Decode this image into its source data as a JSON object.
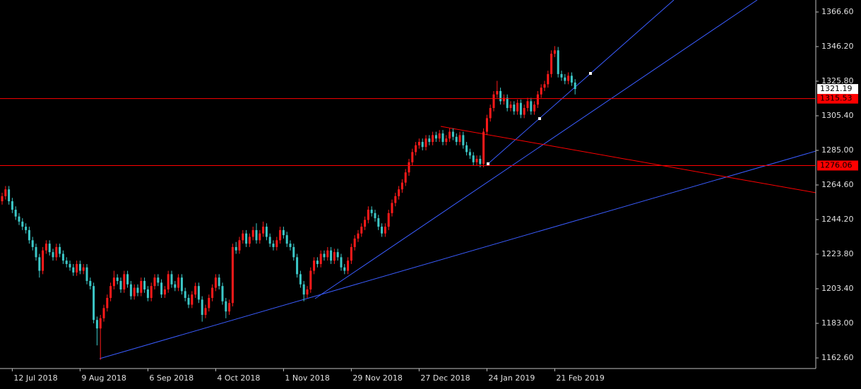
{
  "chart_data": {
    "type": "candlestick",
    "up_color": "#ff1a1a",
    "down_color": "#3cc8c8",
    "categories": [
      null,
      null,
      null,
      "12 Jul 2018",
      null,
      null,
      null,
      null,
      null,
      null,
      null,
      null,
      null,
      null,
      null,
      null,
      null,
      null,
      null,
      null,
      null,
      null,
      null,
      "9 Aug 2018",
      null,
      null,
      null,
      null,
      null,
      null,
      null,
      null,
      null,
      null,
      null,
      null,
      null,
      null,
      null,
      null,
      null,
      null,
      null,
      "6 Sep 2018",
      null,
      null,
      null,
      null,
      null,
      null,
      null,
      null,
      null,
      null,
      null,
      null,
      null,
      null,
      null,
      null,
      null,
      null,
      null,
      "4 Oct 2018",
      null,
      null,
      null,
      null,
      null,
      null,
      null,
      null,
      null,
      null,
      null,
      null,
      null,
      null,
      null,
      null,
      null,
      null,
      null,
      "1 Nov 2018",
      null,
      null,
      null,
      null,
      null,
      null,
      null,
      null,
      null,
      null,
      null,
      null,
      null,
      null,
      null,
      null,
      null,
      null,
      null,
      "29 Nov 2018",
      null,
      null,
      null,
      null,
      null,
      null,
      null,
      null,
      null,
      null,
      null,
      null,
      null,
      null,
      null,
      null,
      null,
      null,
      null,
      "27 Dec 2018",
      null,
      null,
      null,
      null,
      null,
      null,
      null,
      null,
      null,
      null,
      null,
      null,
      null,
      null,
      null,
      null,
      null,
      null,
      null,
      "24 Jan 2019",
      null,
      null,
      null,
      null,
      null,
      null,
      null,
      null,
      null,
      null,
      null,
      null,
      null,
      null,
      null,
      null,
      null,
      null,
      null,
      "21 Feb 2019",
      null,
      null,
      null,
      null,
      null,
      null
    ],
    "open": [
      1255,
      1258,
      1262,
      1255,
      1250,
      1246,
      1243,
      1240,
      1238,
      1232,
      1228,
      1222,
      1214,
      1226,
      1230,
      1225,
      1222,
      1228,
      1224,
      1220,
      1218,
      1216,
      1213,
      1218,
      1214,
      1216,
      1208,
      1205,
      1185,
      1180,
      1186,
      1192,
      1198,
      1205,
      1210,
      1208,
      1203,
      1212,
      1206,
      1199,
      1204,
      1201,
      1208,
      1203,
      1198,
      1205,
      1210,
      1207,
      1200,
      1203,
      1212,
      1206,
      1204,
      1210,
      1202,
      1198,
      1194,
      1200,
      1205,
      1197,
      1188,
      1192,
      1198,
      1204,
      1210,
      1205,
      1196,
      1190,
      1195,
      1228,
      1226,
      1232,
      1236,
      1230,
      1234,
      1238,
      1232,
      1236,
      1240,
      1234,
      1230,
      1228,
      1232,
      1238,
      1235,
      1230,
      1228,
      1222,
      1212,
      1206,
      1200,
      1203,
      1214,
      1220,
      1218,
      1224,
      1222,
      1226,
      1220,
      1225,
      1222,
      1216,
      1214,
      1220,
      1228,
      1233,
      1236,
      1240,
      1244,
      1250,
      1248,
      1245,
      1240,
      1236,
      1240,
      1248,
      1254,
      1258,
      1262,
      1266,
      1272,
      1278,
      1284,
      1288,
      1290,
      1287,
      1292,
      1290,
      1294,
      1292,
      1295,
      1290,
      1292,
      1296,
      1293,
      1290,
      1294,
      1288,
      1284,
      1282,
      1278,
      1280,
      1277,
      1296,
      1304,
      1310,
      1318,
      1320,
      1314,
      1316,
      1310,
      1312,
      1308,
      1313,
      1306,
      1310,
      1314,
      1308,
      1312,
      1318,
      1322,
      1324,
      1330,
      1342,
      1344,
      1330,
      1328,
      1326,
      1329,
      1325
    ],
    "high": [
      1260,
      1264,
      1264,
      1257,
      1252,
      1248,
      1245,
      1242,
      1240,
      1234,
      1230,
      1224,
      1228,
      1232,
      1232,
      1227,
      1230,
      1230,
      1226,
      1222,
      1220,
      1218,
      1220,
      1220,
      1218,
      1218,
      1210,
      1207,
      1187,
      1188,
      1194,
      1200,
      1207,
      1214,
      1212,
      1210,
      1214,
      1214,
      1208,
      1206,
      1206,
      1210,
      1210,
      1205,
      1207,
      1212,
      1212,
      1209,
      1205,
      1214,
      1214,
      1208,
      1212,
      1212,
      1204,
      1200,
      1202,
      1207,
      1207,
      1199,
      1194,
      1200,
      1206,
      1212,
      1212,
      1207,
      1198,
      1197,
      1230,
      1231,
      1234,
      1238,
      1238,
      1236,
      1240,
      1242,
      1238,
      1243,
      1242,
      1236,
      1232,
      1234,
      1240,
      1240,
      1237,
      1232,
      1230,
      1224,
      1214,
      1208,
      1205,
      1216,
      1222,
      1222,
      1226,
      1226,
      1228,
      1228,
      1227,
      1227,
      1224,
      1218,
      1222,
      1230,
      1235,
      1238,
      1242,
      1246,
      1252,
      1252,
      1250,
      1247,
      1242,
      1242,
      1250,
      1256,
      1260,
      1264,
      1268,
      1274,
      1280,
      1286,
      1290,
      1292,
      1292,
      1294,
      1294,
      1296,
      1296,
      1297,
      1297,
      1294,
      1298,
      1298,
      1295,
      1296,
      1296,
      1290,
      1286,
      1284,
      1282,
      1282,
      1298,
      1306,
      1312,
      1320,
      1326,
      1322,
      1318,
      1318,
      1314,
      1314,
      1315,
      1315,
      1312,
      1316,
      1316,
      1314,
      1320,
      1324,
      1326,
      1332,
      1344,
      1346.5,
      1346,
      1332,
      1330,
      1331,
      1331,
      1327
    ],
    "low": [
      1253,
      1256,
      1253,
      1248,
      1244,
      1241,
      1238,
      1236,
      1230,
      1226,
      1220,
      1210,
      1212,
      1224,
      1223,
      1220,
      1220,
      1222,
      1218,
      1216,
      1214,
      1211,
      1211,
      1212,
      1212,
      1206,
      1203,
      1183,
      1170,
      1161.5,
      1184,
      1190,
      1196,
      1203,
      1206,
      1201,
      1201,
      1204,
      1197,
      1197,
      1199,
      1199,
      1201,
      1196,
      1196,
      1203,
      1205,
      1198,
      1198,
      1201,
      1204,
      1202,
      1202,
      1200,
      1196,
      1192,
      1192,
      1198,
      1195,
      1184,
      1186,
      1190,
      1196,
      1202,
      1203,
      1194,
      1186,
      1188,
      1193,
      1224,
      1224,
      1230,
      1228,
      1228,
      1232,
      1230,
      1230,
      1234,
      1232,
      1228,
      1226,
      1226,
      1230,
      1233,
      1228,
      1226,
      1220,
      1210,
      1204,
      1196,
      1198,
      1201,
      1212,
      1216,
      1216,
      1220,
      1220,
      1218,
      1218,
      1220,
      1214,
      1212,
      1212,
      1218,
      1226,
      1231,
      1234,
      1238,
      1242,
      1246,
      1243,
      1238,
      1234,
      1234,
      1238,
      1246,
      1252,
      1256,
      1260,
      1264,
      1270,
      1276,
      1282,
      1286,
      1285,
      1285,
      1288,
      1288,
      1290,
      1290,
      1288,
      1288,
      1290,
      1291,
      1288,
      1288,
      1286,
      1282,
      1280,
      1276,
      1276,
      1275,
      1275,
      1294,
      1302,
      1308,
      1316,
      1312,
      1312,
      1308,
      1308,
      1306,
      1306,
      1304,
      1304,
      1308,
      1306,
      1306,
      1310,
      1316,
      1320,
      1322,
      1328,
      1340,
      1328,
      1326,
      1324,
      1324,
      1323,
      1318
    ],
    "close": [
      1258,
      1262,
      1255,
      1250,
      1246,
      1243,
      1240,
      1238,
      1232,
      1228,
      1222,
      1214,
      1226,
      1230,
      1225,
      1222,
      1228,
      1224,
      1220,
      1218,
      1216,
      1213,
      1218,
      1214,
      1216,
      1208,
      1205,
      1185,
      1180,
      1186,
      1192,
      1198,
      1205,
      1210,
      1208,
      1203,
      1212,
      1206,
      1199,
      1204,
      1201,
      1208,
      1203,
      1198,
      1205,
      1210,
      1207,
      1200,
      1203,
      1212,
      1206,
      1204,
      1210,
      1202,
      1198,
      1194,
      1200,
      1205,
      1197,
      1188,
      1192,
      1198,
      1204,
      1210,
      1205,
      1196,
      1190,
      1195,
      1228,
      1226,
      1232,
      1236,
      1230,
      1234,
      1238,
      1232,
      1236,
      1240,
      1234,
      1230,
      1228,
      1232,
      1238,
      1235,
      1230,
      1228,
      1222,
      1212,
      1206,
      1200,
      1203,
      1214,
      1220,
      1218,
      1224,
      1222,
      1226,
      1220,
      1225,
      1222,
      1216,
      1214,
      1220,
      1228,
      1233,
      1236,
      1240,
      1244,
      1250,
      1248,
      1245,
      1240,
      1236,
      1240,
      1248,
      1254,
      1258,
      1262,
      1266,
      1272,
      1278,
      1284,
      1288,
      1290,
      1287,
      1292,
      1290,
      1294,
      1292,
      1295,
      1290,
      1292,
      1296,
      1293,
      1290,
      1294,
      1288,
      1284,
      1282,
      1278,
      1280,
      1277,
      1296,
      1304,
      1310,
      1318,
      1320,
      1314,
      1316,
      1310,
      1312,
      1308,
      1313,
      1306,
      1310,
      1314,
      1308,
      1312,
      1318,
      1322,
      1324,
      1330,
      1342,
      1344,
      1330,
      1328,
      1326,
      1329,
      1325,
      1321.19
    ],
    "hlines": [
      {
        "value": 1315.53,
        "color": "#ff0000"
      },
      {
        "value": 1276.06,
        "color": "#ff0000"
      }
    ],
    "ylim": [
      1156.36,
      1373.68
    ],
    "yticks": [
      {
        "value": 1162.6,
        "label": "1162.60"
      },
      {
        "value": 1183,
        "label": "1183.00"
      },
      {
        "value": 1203.4,
        "label": "1203.40"
      },
      {
        "value": 1223.8,
        "label": "1223.80"
      },
      {
        "value": 1244.2,
        "label": "1244.20"
      },
      {
        "value": 1264.6,
        "label": "1264.60"
      },
      {
        "value": 1285,
        "label": "1285.00"
      },
      {
        "value": 1305.4,
        "label": "1305.40"
      },
      {
        "value": 1325.8,
        "label": "1325.80"
      },
      {
        "value": 1346.2,
        "label": "1346.20"
      },
      {
        "value": 1366.6,
        "label": "1366.60"
      }
    ]
  }
}
